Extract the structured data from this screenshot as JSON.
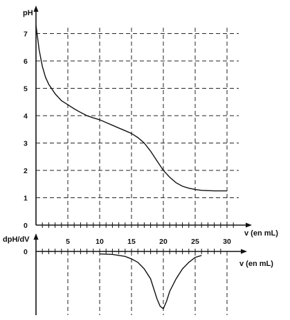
{
  "chart_data": [
    {
      "type": "line",
      "ylabel": "pH",
      "xlabel": "v (en mL)",
      "xlim": [
        0,
        32
      ],
      "ylim": [
        0,
        7.5
      ],
      "x_ticks": [
        5,
        10,
        15,
        20,
        25,
        30
      ],
      "y_ticks": [
        0,
        1,
        2,
        3,
        4,
        5,
        6,
        7
      ],
      "grid": true,
      "series": [
        {
          "x": [
            0,
            0.5,
            1,
            1.5,
            2,
            3,
            4,
            5,
            6,
            7,
            8,
            9,
            10,
            11,
            12,
            13,
            14,
            15,
            16,
            17,
            18,
            19,
            20,
            21,
            22,
            23,
            24,
            25,
            26,
            27,
            28,
            29,
            30
          ],
          "y": [
            7.3,
            6.4,
            5.8,
            5.4,
            5.15,
            4.8,
            4.55,
            4.4,
            4.25,
            4.12,
            4.0,
            3.92,
            3.85,
            3.75,
            3.65,
            3.55,
            3.45,
            3.35,
            3.2,
            3.0,
            2.7,
            2.35,
            2.0,
            1.75,
            1.55,
            1.42,
            1.35,
            1.3,
            1.27,
            1.26,
            1.25,
            1.25,
            1.25
          ]
        }
      ]
    },
    {
      "type": "line",
      "ylabel": "dpH/dV",
      "xlabel": "v (en mL)",
      "xlim": [
        0,
        32
      ],
      "y_ticks": [
        0
      ],
      "grid": true,
      "series": [
        {
          "x": [
            10,
            12,
            14,
            15,
            16,
            17,
            18,
            18.5,
            19,
            19.5,
            20,
            20.5,
            21,
            22,
            23,
            24,
            25,
            26
          ],
          "y": [
            -0.05,
            -0.06,
            -0.1,
            -0.15,
            -0.22,
            -0.35,
            -0.55,
            -0.75,
            -0.95,
            -1.1,
            -1.15,
            -1.0,
            -0.8,
            -0.55,
            -0.35,
            -0.22,
            -0.12,
            -0.08
          ]
        }
      ]
    }
  ]
}
